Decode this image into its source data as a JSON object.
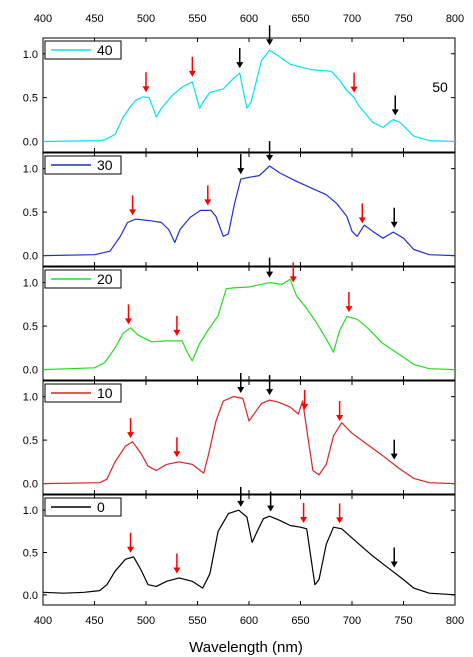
{
  "chart_data": {
    "type": "line",
    "xlabel": "Wavelength (nm)",
    "ylabel": "",
    "xlim": [
      400,
      800
    ],
    "ylim": [
      -0.12,
      1.18
    ],
    "x_ticks": [
      400,
      450,
      500,
      550,
      600,
      650,
      700,
      750,
      800
    ],
    "y_ticks": [
      0.0,
      0.5,
      1.0
    ],
    "top_axis_ticks": [
      400,
      450,
      500,
      550,
      600,
      650,
      700,
      750,
      800
    ],
    "annotation": "50",
    "arrow_colors": {
      "red": "#ff0000",
      "black": "#000000"
    },
    "panels": [
      {
        "legend": "40",
        "color": "#00e5ee",
        "series": [
          [
            400,
            0.0
          ],
          [
            455,
            0.01
          ],
          [
            460,
            0.02
          ],
          [
            470,
            0.08
          ],
          [
            478,
            0.28
          ],
          [
            485,
            0.4
          ],
          [
            490,
            0.47
          ],
          [
            497,
            0.51
          ],
          [
            503,
            0.5
          ],
          [
            507,
            0.38
          ],
          [
            510,
            0.28
          ],
          [
            515,
            0.38
          ],
          [
            525,
            0.52
          ],
          [
            535,
            0.62
          ],
          [
            545,
            0.68
          ],
          [
            548,
            0.55
          ],
          [
            552,
            0.38
          ],
          [
            556,
            0.46
          ],
          [
            562,
            0.56
          ],
          [
            575,
            0.6
          ],
          [
            585,
            0.72
          ],
          [
            591,
            0.78
          ],
          [
            595,
            0.55
          ],
          [
            598,
            0.38
          ],
          [
            602,
            0.45
          ],
          [
            607,
            0.68
          ],
          [
            612,
            0.92
          ],
          [
            620,
            1.04
          ],
          [
            628,
            0.98
          ],
          [
            640,
            0.88
          ],
          [
            660,
            0.82
          ],
          [
            680,
            0.8
          ],
          [
            688,
            0.7
          ],
          [
            695,
            0.58
          ],
          [
            702,
            0.5
          ],
          [
            707,
            0.4
          ],
          [
            713,
            0.32
          ],
          [
            720,
            0.22
          ],
          [
            730,
            0.16
          ],
          [
            740,
            0.25
          ],
          [
            746,
            0.22
          ],
          [
            750,
            0.18
          ],
          [
            760,
            0.06
          ],
          [
            775,
            0.01
          ],
          [
            800,
            0.0
          ]
        ],
        "red_arrows": [
          500,
          545,
          702
        ],
        "black_arrows": [
          591,
          620,
          742
        ]
      },
      {
        "legend": "30",
        "color": "#1f2fd0",
        "series": [
          [
            400,
            0.0
          ],
          [
            450,
            0.01
          ],
          [
            465,
            0.05
          ],
          [
            475,
            0.22
          ],
          [
            482,
            0.38
          ],
          [
            490,
            0.42
          ],
          [
            505,
            0.4
          ],
          [
            515,
            0.38
          ],
          [
            522,
            0.3
          ],
          [
            528,
            0.15
          ],
          [
            533,
            0.3
          ],
          [
            543,
            0.44
          ],
          [
            553,
            0.52
          ],
          [
            563,
            0.52
          ],
          [
            568,
            0.45
          ],
          [
            575,
            0.22
          ],
          [
            580,
            0.25
          ],
          [
            586,
            0.6
          ],
          [
            592,
            0.88
          ],
          [
            600,
            0.9
          ],
          [
            610,
            0.92
          ],
          [
            620,
            1.03
          ],
          [
            630,
            0.95
          ],
          [
            645,
            0.86
          ],
          [
            660,
            0.78
          ],
          [
            675,
            0.7
          ],
          [
            685,
            0.6
          ],
          [
            695,
            0.45
          ],
          [
            700,
            0.28
          ],
          [
            705,
            0.22
          ],
          [
            712,
            0.35
          ],
          [
            720,
            0.28
          ],
          [
            730,
            0.2
          ],
          [
            740,
            0.27
          ],
          [
            750,
            0.2
          ],
          [
            760,
            0.07
          ],
          [
            775,
            0.01
          ],
          [
            800,
            0.0
          ]
        ],
        "red_arrows": [
          487,
          560,
          710
        ],
        "black_arrows": [
          592,
          620,
          741
        ]
      },
      {
        "legend": "20",
        "color": "#22dd22",
        "series": [
          [
            400,
            0.0
          ],
          [
            450,
            0.02
          ],
          [
            460,
            0.08
          ],
          [
            470,
            0.25
          ],
          [
            478,
            0.42
          ],
          [
            485,
            0.48
          ],
          [
            492,
            0.4
          ],
          [
            505,
            0.32
          ],
          [
            520,
            0.33
          ],
          [
            535,
            0.33
          ],
          [
            540,
            0.2
          ],
          [
            545,
            0.1
          ],
          [
            552,
            0.3
          ],
          [
            560,
            0.45
          ],
          [
            570,
            0.62
          ],
          [
            578,
            0.93
          ],
          [
            585,
            0.94
          ],
          [
            600,
            0.95
          ],
          [
            620,
            1.0
          ],
          [
            632,
            0.98
          ],
          [
            640,
            1.04
          ],
          [
            646,
            0.85
          ],
          [
            655,
            0.72
          ],
          [
            665,
            0.55
          ],
          [
            675,
            0.35
          ],
          [
            682,
            0.2
          ],
          [
            688,
            0.45
          ],
          [
            695,
            0.61
          ],
          [
            705,
            0.58
          ],
          [
            715,
            0.48
          ],
          [
            730,
            0.3
          ],
          [
            745,
            0.18
          ],
          [
            760,
            0.06
          ],
          [
            775,
            0.01
          ],
          [
            800,
            0.0
          ]
        ],
        "red_arrows": [
          483,
          530,
          643,
          697
        ],
        "black_arrows": [
          620
        ]
      },
      {
        "legend": "10",
        "color": "#dd2222",
        "series": [
          [
            400,
            0.0
          ],
          [
            455,
            0.01
          ],
          [
            462,
            0.05
          ],
          [
            470,
            0.25
          ],
          [
            480,
            0.43
          ],
          [
            487,
            0.48
          ],
          [
            495,
            0.35
          ],
          [
            502,
            0.2
          ],
          [
            510,
            0.15
          ],
          [
            520,
            0.22
          ],
          [
            532,
            0.25
          ],
          [
            545,
            0.22
          ],
          [
            556,
            0.12
          ],
          [
            560,
            0.3
          ],
          [
            568,
            0.72
          ],
          [
            575,
            0.95
          ],
          [
            585,
            1.0
          ],
          [
            594,
            0.98
          ],
          [
            600,
            0.72
          ],
          [
            606,
            0.82
          ],
          [
            612,
            0.92
          ],
          [
            620,
            0.96
          ],
          [
            630,
            0.93
          ],
          [
            640,
            0.88
          ],
          [
            648,
            0.8
          ],
          [
            652,
            0.95
          ],
          [
            657,
            0.55
          ],
          [
            662,
            0.15
          ],
          [
            668,
            0.1
          ],
          [
            675,
            0.22
          ],
          [
            682,
            0.55
          ],
          [
            690,
            0.7
          ],
          [
            700,
            0.58
          ],
          [
            715,
            0.45
          ],
          [
            730,
            0.32
          ],
          [
            745,
            0.18
          ],
          [
            760,
            0.06
          ],
          [
            775,
            0.01
          ],
          [
            800,
            0.0
          ]
        ],
        "red_arrows": [
          485,
          530,
          654,
          688
        ],
        "black_arrows": [
          592,
          620,
          741
        ]
      },
      {
        "legend": "0",
        "color": "#000000",
        "series": [
          [
            400,
            0.03
          ],
          [
            420,
            0.02
          ],
          [
            440,
            0.03
          ],
          [
            455,
            0.05
          ],
          [
            462,
            0.12
          ],
          [
            470,
            0.28
          ],
          [
            480,
            0.42
          ],
          [
            488,
            0.45
          ],
          [
            495,
            0.3
          ],
          [
            502,
            0.12
          ],
          [
            510,
            0.1
          ],
          [
            520,
            0.16
          ],
          [
            532,
            0.2
          ],
          [
            545,
            0.16
          ],
          [
            555,
            0.08
          ],
          [
            562,
            0.25
          ],
          [
            570,
            0.75
          ],
          [
            580,
            0.96
          ],
          [
            590,
            1.0
          ],
          [
            598,
            0.92
          ],
          [
            603,
            0.62
          ],
          [
            608,
            0.75
          ],
          [
            614,
            0.9
          ],
          [
            620,
            0.93
          ],
          [
            630,
            0.88
          ],
          [
            640,
            0.82
          ],
          [
            650,
            0.8
          ],
          [
            656,
            0.78
          ],
          [
            660,
            0.45
          ],
          [
            664,
            0.12
          ],
          [
            668,
            0.18
          ],
          [
            675,
            0.6
          ],
          [
            682,
            0.8
          ],
          [
            690,
            0.78
          ],
          [
            705,
            0.62
          ],
          [
            720,
            0.46
          ],
          [
            735,
            0.32
          ],
          [
            750,
            0.18
          ],
          [
            760,
            0.08
          ],
          [
            775,
            0.02
          ],
          [
            800,
            0.0
          ]
        ],
        "red_arrows": [
          485,
          530,
          653,
          688
        ],
        "black_arrows": [
          592,
          621,
          741
        ]
      }
    ]
  }
}
